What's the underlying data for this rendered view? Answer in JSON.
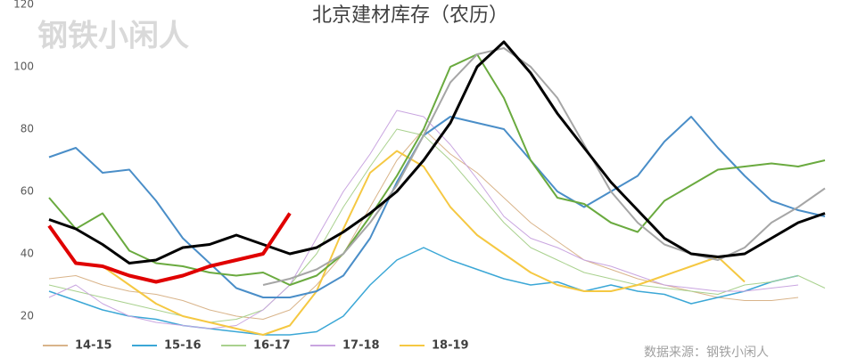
{
  "chart_data": {
    "type": "line",
    "title": "北京建材库存（农历）",
    "watermark": "钢铁小闲人",
    "source": "数据来源：钢铁小闲人",
    "categories": [
      null,
      null,
      null,
      null,
      null,
      null,
      null,
      null,
      null,
      null,
      null,
      null,
      null,
      null,
      null,
      null,
      null,
      null,
      null,
      null,
      null,
      null,
      null,
      null,
      null,
      null,
      null,
      null,
      null,
      null
    ],
    "ylim": [
      10,
      120
    ],
    "yticks": [
      20,
      40,
      60,
      80,
      100,
      120
    ],
    "grid": false,
    "series": [
      {
        "name": "14-15",
        "color": "#d9b48a",
        "width": 1,
        "values": [
          32,
          33,
          30,
          28,
          27,
          25,
          22,
          20,
          19,
          22,
          30,
          40,
          55,
          70,
          80,
          72,
          66,
          58,
          50,
          44,
          38,
          35,
          32,
          30,
          28,
          26,
          25,
          25,
          26,
          null
        ]
      },
      {
        "name": "15-16",
        "color": "#3ba7d6",
        "width": 1.5,
        "values": [
          28,
          25,
          22,
          20,
          19,
          17,
          16,
          15,
          14,
          14,
          15,
          20,
          30,
          38,
          42,
          38,
          35,
          32,
          30,
          31,
          28,
          30,
          28,
          27,
          24,
          26,
          28,
          31,
          33,
          null
        ]
      },
      {
        "name": "16-17",
        "color": "#a9d18e",
        "width": 1,
        "values": [
          30,
          28,
          26,
          24,
          22,
          20,
          18,
          19,
          22,
          30,
          40,
          55,
          68,
          80,
          78,
          70,
          60,
          50,
          42,
          38,
          34,
          32,
          30,
          29,
          28,
          27,
          30,
          31,
          33,
          29
        ]
      },
      {
        "name": "17-18",
        "color": "#c9a5e0",
        "width": 1,
        "values": [
          26,
          30,
          24,
          20,
          18,
          17,
          16,
          17,
          22,
          30,
          45,
          60,
          72,
          86,
          84,
          75,
          64,
          52,
          45,
          42,
          38,
          36,
          33,
          30,
          29,
          28,
          28,
          29,
          30,
          null
        ]
      },
      {
        "name": "18-19",
        "color": "#f5c842",
        "width": 2,
        "values": [
          null,
          null,
          36,
          30,
          24,
          20,
          18,
          16,
          14,
          17,
          28,
          48,
          66,
          73,
          68,
          55,
          46,
          40,
          34,
          30,
          28,
          28,
          30,
          33,
          36,
          39,
          31,
          null,
          null,
          null
        ]
      },
      {
        "color": "#4a8ec8",
        "width": 2,
        "values": [
          71,
          74,
          66,
          67,
          57,
          45,
          37,
          29,
          26,
          26,
          28,
          33,
          45,
          63,
          78,
          84,
          82,
          80,
          70,
          60,
          55,
          60,
          65,
          76,
          84,
          74,
          65,
          57,
          54,
          52
        ]
      },
      {
        "color": "#6aaa3f",
        "width": 2,
        "values": [
          58,
          48,
          53,
          41,
          37,
          36,
          34,
          33,
          34,
          30,
          33,
          40,
          52,
          65,
          80,
          100,
          104,
          90,
          70,
          58,
          56,
          50,
          47,
          57,
          62,
          67,
          68,
          69,
          68,
          70
        ]
      },
      {
        "color": "#a6a6a6",
        "width": 2,
        "values": [
          null,
          null,
          null,
          null,
          null,
          null,
          null,
          null,
          30,
          32,
          35,
          40,
          50,
          62,
          78,
          95,
          104,
          106,
          100,
          90,
          75,
          60,
          50,
          43,
          40,
          38,
          42,
          50,
          55,
          61
        ]
      },
      {
        "color": "#000000",
        "width": 3,
        "values": [
          51,
          48,
          43,
          37,
          38,
          42,
          43,
          46,
          43,
          40,
          42,
          47,
          53,
          60,
          70,
          82,
          100,
          108,
          98,
          85,
          74,
          63,
          54,
          45,
          40,
          39,
          40,
          45,
          50,
          53
        ]
      },
      {
        "color": "#e00000",
        "width": 4,
        "values": [
          49,
          37,
          36,
          33,
          31,
          33,
          36,
          38,
          40,
          53,
          null,
          null,
          null,
          null,
          null,
          null,
          null,
          null,
          null,
          null,
          null,
          null,
          null,
          null,
          null,
          null,
          null,
          null,
          null,
          null
        ]
      }
    ]
  }
}
